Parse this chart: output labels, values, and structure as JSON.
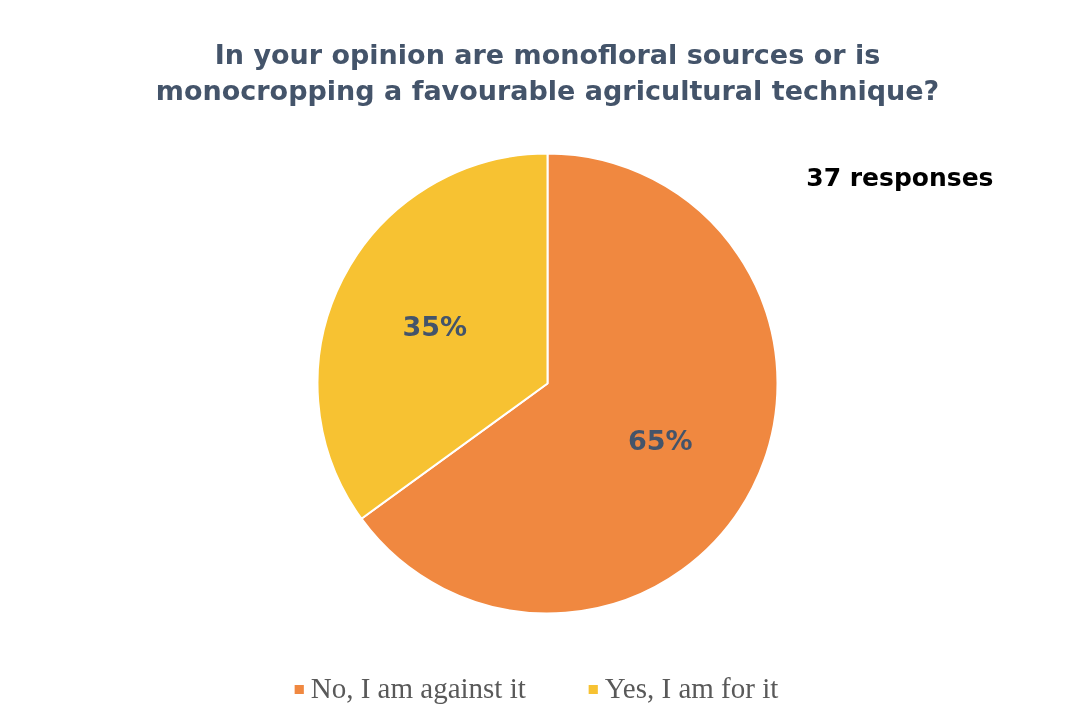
{
  "chart_data": {
    "type": "pie",
    "title": "In your opinion are monofloral sources or is monocropping a favourable agricultural technique?",
    "categories": [
      "No, I am against it",
      "Yes, I am for it"
    ],
    "values": [
      65,
      35
    ],
    "colors": [
      "#f08840",
      "#f7c232"
    ],
    "data_labels": true,
    "value_labels": [
      "65%",
      "35%"
    ],
    "annotations": [
      "37 responses"
    ],
    "legend": "bottom"
  }
}
